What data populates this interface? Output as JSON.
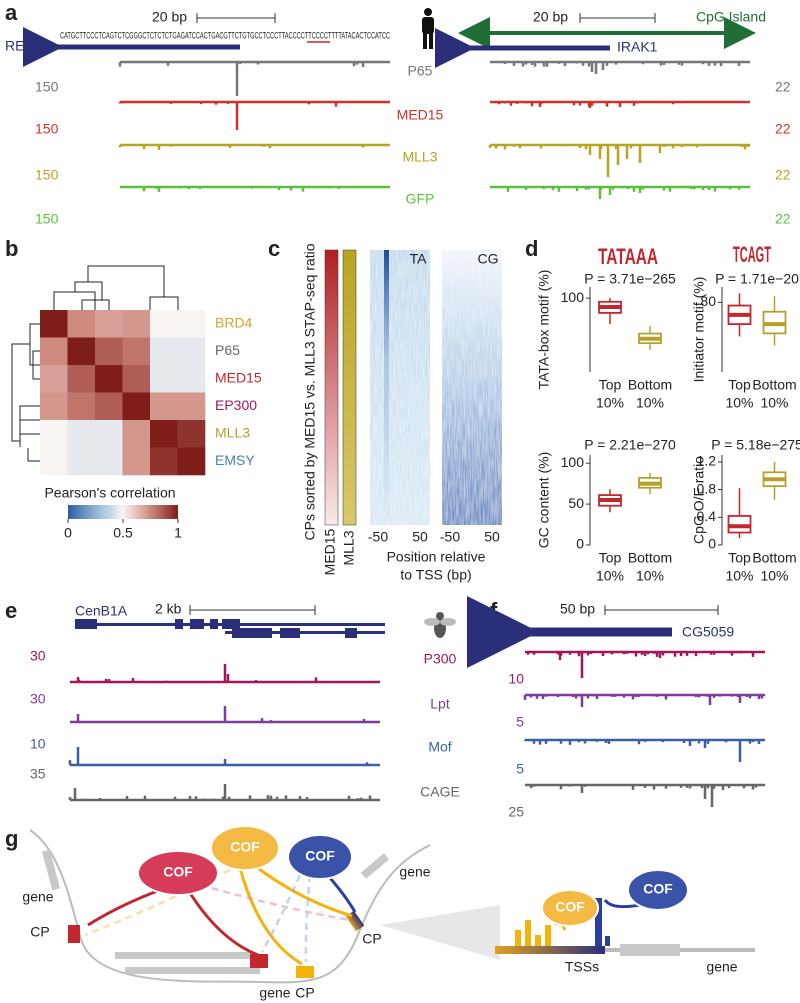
{
  "figure": {
    "a": {
      "label": "a",
      "scale_left": "20 bp",
      "scale_right": "20 bp",
      "sequence": "CATGCTTCCCTCAGTCTCGGGCTCTCTCTGAGATCCACTGACGTTCTGTGCCTCCCTTACCCCTTCCCCTTTTATACACTCCATCC",
      "gene_left": "REN",
      "gene_right": "IRAK1",
      "cpg_island": "CpG Island",
      "tracks": [
        {
          "name": "P65",
          "color": "#777777",
          "left_max": 150,
          "right_max": 22
        },
        {
          "name": "MED15",
          "color": "#d0312d",
          "left_max": 150,
          "right_max": 22
        },
        {
          "name": "MLL3",
          "color": "#b8a421",
          "left_max": 150,
          "right_max": 22
        },
        {
          "name": "GFP",
          "color": "#5cbf3a",
          "left_max": 150,
          "right_max": 22
        }
      ]
    },
    "b": {
      "label": "b",
      "rows": [
        "BRD4",
        "P65",
        "MED15",
        "EP300",
        "MLL3",
        "EMSY"
      ],
      "row_colors": [
        "#d4a32a",
        "#666666",
        "#c1272d",
        "#a0185a",
        "#b5a02e",
        "#4a7cc0"
      ],
      "matrix": [
        [
          1,
          0.75,
          0.7,
          0.72,
          0.5,
          0.5
        ],
        [
          0.75,
          1,
          0.85,
          0.8,
          0.46,
          0.46
        ],
        [
          0.7,
          0.85,
          1,
          0.85,
          0.46,
          0.46
        ],
        [
          0.72,
          0.8,
          0.85,
          1,
          0.72,
          0.72
        ],
        [
          0.5,
          0.46,
          0.46,
          0.72,
          1,
          0.95
        ],
        [
          0.5,
          0.46,
          0.46,
          0.72,
          0.95,
          1
        ]
      ],
      "colorbar_title": "Pearson's correlation",
      "colorbar_lim": [
        0,
        1
      ],
      "colorbar_ticks": [
        0,
        0.5,
        1
      ]
    },
    "c": {
      "label": "c",
      "ylabel": "CPs sorted by MED15 vs. MLL3 STAP-seq ratio",
      "bars": [
        "MED15",
        "MLL3"
      ],
      "maps": [
        "TA",
        "CG"
      ],
      "xticks": [
        "-50",
        "50"
      ],
      "xlabel": [
        "Position relative",
        "to TSS (bp)"
      ]
    },
    "d": {
      "label": "d",
      "motifs": [
        "TATAAA",
        "TCAGT"
      ],
      "plots": [
        {
          "ylabel": "TATA-box motif (%)",
          "p": "P = 3.71e−265",
          "ylim": [
            0,
            115
          ],
          "yticks": [
            100
          ],
          "boxes": [
            {
              "category": "Top",
              "sub": "10%",
              "color": "#c1272d",
              "whislo": 65,
              "q1": 80,
              "med": 88,
              "q3": 95,
              "whishi": 100
            },
            {
              "category": "Bottom",
              "sub": "10%",
              "color": "#b5a02e",
              "whislo": 30,
              "q1": 39,
              "med": 45,
              "q3": 52,
              "whishi": 62
            }
          ]
        },
        {
          "ylabel": "Initiator motif (%)",
          "p": "P = 1.71e−20",
          "ylim": [
            35,
            90
          ],
          "yticks": [
            80
          ],
          "boxes": [
            {
              "category": "Top",
              "sub": "10%",
              "color": "#c1272d",
              "whislo": 58,
              "q1": 66,
              "med": 72,
              "q3": 78,
              "whishi": 86
            },
            {
              "category": "Bottom",
              "sub": "10%",
              "color": "#b5a02e",
              "whislo": 52,
              "q1": 60,
              "med": 66,
              "q3": 74,
              "whishi": 84
            }
          ]
        },
        {
          "ylabel": "GC content (%)",
          "p": "P = 2.21e−270",
          "ylim": [
            0,
            110
          ],
          "yticks": [
            0,
            50,
            100
          ],
          "boxes": [
            {
              "category": "Top",
              "sub": "10%",
              "color": "#c1272d",
              "whislo": 40,
              "q1": 48,
              "med": 55,
              "q3": 61,
              "whishi": 68
            },
            {
              "category": "Bottom",
              "sub": "10%",
              "color": "#b5a02e",
              "whislo": 62,
              "q1": 70,
              "med": 75,
              "q3": 82,
              "whishi": 88
            }
          ]
        },
        {
          "ylabel": "CpG O/E ratio",
          "p": "P = 5.18e−275",
          "ylim": [
            0,
            1.3
          ],
          "yticks": [
            0,
            0.4,
            0.8,
            1.2
          ],
          "boxes": [
            {
              "category": "Top",
              "sub": "10%",
              "color": "#c1272d",
              "whislo": 0.1,
              "q1": 0.18,
              "med": 0.27,
              "q3": 0.42,
              "whishi": 0.82
            },
            {
              "category": "Bottom",
              "sub": "10%",
              "color": "#b5a02e",
              "whislo": 0.65,
              "q1": 0.85,
              "med": 0.95,
              "q3": 1.05,
              "whishi": 1.2
            }
          ]
        }
      ]
    },
    "e": {
      "label": "e",
      "gene": "CenB1A",
      "scale": "2 kb",
      "tracks": [
        {
          "name": "P300",
          "color": "#a0185a",
          "max": 30
        },
        {
          "name": "Lpt",
          "color": "#7d3c98",
          "max": 30
        },
        {
          "name": "Mof",
          "color": "#3a5fa8",
          "max": 10
        },
        {
          "name": "CAGE",
          "color": "#666666",
          "max": 35
        }
      ]
    },
    "f": {
      "label": "f",
      "gene": "CG5059",
      "scale": "50 bp",
      "maxes": [
        10,
        5,
        5,
        25
      ]
    },
    "g": {
      "label": "g",
      "cof": [
        "COF",
        "COF",
        "COF",
        "COF",
        "COF"
      ],
      "gene": [
        "gene",
        "gene",
        "gene",
        "gene"
      ],
      "cp": [
        "CP",
        "CP",
        "CP"
      ],
      "tsss": "TSSs"
    }
  }
}
